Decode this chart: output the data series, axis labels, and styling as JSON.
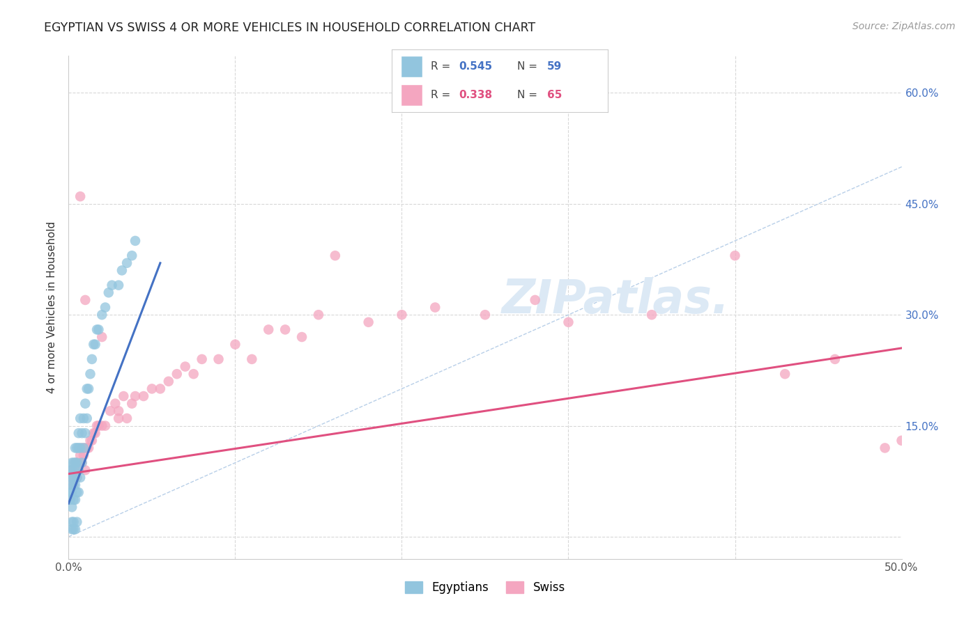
{
  "title": "EGYPTIAN VS SWISS 4 OR MORE VEHICLES IN HOUSEHOLD CORRELATION CHART",
  "source": "Source: ZipAtlas.com",
  "ylabel": "4 or more Vehicles in Household",
  "xlim": [
    0.0,
    0.5
  ],
  "ylim": [
    -0.03,
    0.65
  ],
  "xticks": [
    0.0,
    0.1,
    0.2,
    0.3,
    0.4,
    0.5
  ],
  "xticklabels": [
    "0.0%",
    "",
    "",
    "",
    "",
    "50.0%"
  ],
  "yticks": [
    0.0,
    0.15,
    0.3,
    0.45,
    0.6
  ],
  "yticklabels_right": [
    "15.0%",
    "30.0%",
    "45.0%",
    "60.0%"
  ],
  "blue_color": "#92c5de",
  "pink_color": "#f4a6c0",
  "blue_line_color": "#4472c4",
  "pink_line_color": "#e05080",
  "ref_line_color": "#b8cfe8",
  "right_axis_color": "#4472c4",
  "watermark_color": "#dce9f5",
  "background": "#ffffff",
  "grid_color": "#d8d8d8",
  "eg_x": [
    0.001,
    0.001,
    0.001,
    0.001,
    0.002,
    0.002,
    0.002,
    0.002,
    0.002,
    0.003,
    0.003,
    0.003,
    0.003,
    0.004,
    0.004,
    0.004,
    0.004,
    0.004,
    0.005,
    0.005,
    0.005,
    0.005,
    0.006,
    0.006,
    0.006,
    0.006,
    0.007,
    0.007,
    0.007,
    0.008,
    0.008,
    0.009,
    0.009,
    0.01,
    0.01,
    0.011,
    0.011,
    0.012,
    0.013,
    0.014,
    0.015,
    0.016,
    0.017,
    0.018,
    0.02,
    0.022,
    0.024,
    0.026,
    0.03,
    0.032,
    0.035,
    0.038,
    0.04,
    0.002,
    0.003,
    0.004,
    0.002,
    0.003,
    0.005
  ],
  "eg_y": [
    0.05,
    0.06,
    0.07,
    0.09,
    0.04,
    0.06,
    0.08,
    0.09,
    0.1,
    0.05,
    0.07,
    0.08,
    0.1,
    0.05,
    0.07,
    0.09,
    0.1,
    0.12,
    0.06,
    0.08,
    0.1,
    0.12,
    0.06,
    0.09,
    0.12,
    0.14,
    0.08,
    0.12,
    0.16,
    0.1,
    0.14,
    0.12,
    0.16,
    0.14,
    0.18,
    0.16,
    0.2,
    0.2,
    0.22,
    0.24,
    0.26,
    0.26,
    0.28,
    0.28,
    0.3,
    0.31,
    0.33,
    0.34,
    0.34,
    0.36,
    0.37,
    0.38,
    0.4,
    0.01,
    0.01,
    0.01,
    0.02,
    0.02,
    0.02
  ],
  "sw_x": [
    0.001,
    0.002,
    0.002,
    0.003,
    0.003,
    0.004,
    0.005,
    0.005,
    0.006,
    0.007,
    0.007,
    0.008,
    0.008,
    0.009,
    0.01,
    0.01,
    0.011,
    0.012,
    0.013,
    0.014,
    0.015,
    0.016,
    0.017,
    0.018,
    0.02,
    0.022,
    0.025,
    0.028,
    0.03,
    0.033,
    0.035,
    0.038,
    0.04,
    0.045,
    0.05,
    0.055,
    0.06,
    0.065,
    0.07,
    0.075,
    0.08,
    0.09,
    0.1,
    0.11,
    0.12,
    0.13,
    0.14,
    0.15,
    0.16,
    0.18,
    0.2,
    0.22,
    0.25,
    0.28,
    0.3,
    0.35,
    0.4,
    0.43,
    0.46,
    0.49,
    0.007,
    0.01,
    0.02,
    0.03,
    0.5
  ],
  "sw_y": [
    0.07,
    0.08,
    0.09,
    0.07,
    0.09,
    0.1,
    0.08,
    0.1,
    0.09,
    0.11,
    0.1,
    0.1,
    0.12,
    0.11,
    0.12,
    0.09,
    0.12,
    0.12,
    0.13,
    0.13,
    0.14,
    0.14,
    0.15,
    0.15,
    0.15,
    0.15,
    0.17,
    0.18,
    0.17,
    0.19,
    0.16,
    0.18,
    0.19,
    0.19,
    0.2,
    0.2,
    0.21,
    0.22,
    0.23,
    0.22,
    0.24,
    0.24,
    0.26,
    0.24,
    0.28,
    0.28,
    0.27,
    0.3,
    0.38,
    0.29,
    0.3,
    0.31,
    0.3,
    0.32,
    0.29,
    0.3,
    0.38,
    0.22,
    0.24,
    0.12,
    0.46,
    0.32,
    0.27,
    0.16,
    0.13
  ],
  "eg_line_x": [
    0.0,
    0.055
  ],
  "eg_line_y": [
    0.045,
    0.37
  ],
  "sw_line_x": [
    0.0,
    0.5
  ],
  "sw_line_y": [
    0.085,
    0.255
  ]
}
